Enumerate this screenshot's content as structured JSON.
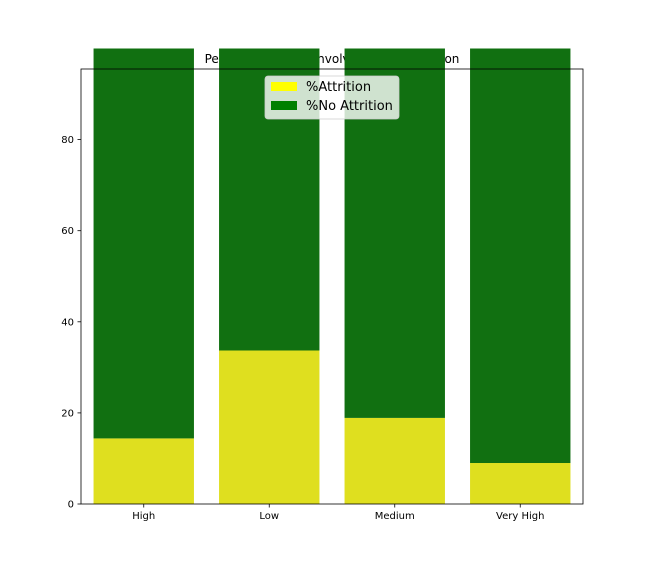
{
  "chart_data": {
    "type": "bar",
    "stacked": true,
    "title": "Percentage of Job Involvement by Attrition",
    "xlabel": "",
    "ylabel": "",
    "categories": [
      "High",
      "Low",
      "Medium",
      "Very High"
    ],
    "series": [
      {
        "name": "%Attrition",
        "values": [
          14.4,
          33.7,
          18.9,
          9.0
        ],
        "color": "#dfdf1f",
        "legend_color": "#ffff00"
      },
      {
        "name": "%No Attrition",
        "values": [
          85.6,
          66.3,
          81.1,
          91.0
        ],
        "color": "#117011",
        "legend_color": "#008000"
      }
    ],
    "ylim": [
      0,
      95.5
    ],
    "yticks": [
      0,
      20,
      40,
      60,
      80
    ],
    "grid": false,
    "legend_position": "top-center"
  }
}
